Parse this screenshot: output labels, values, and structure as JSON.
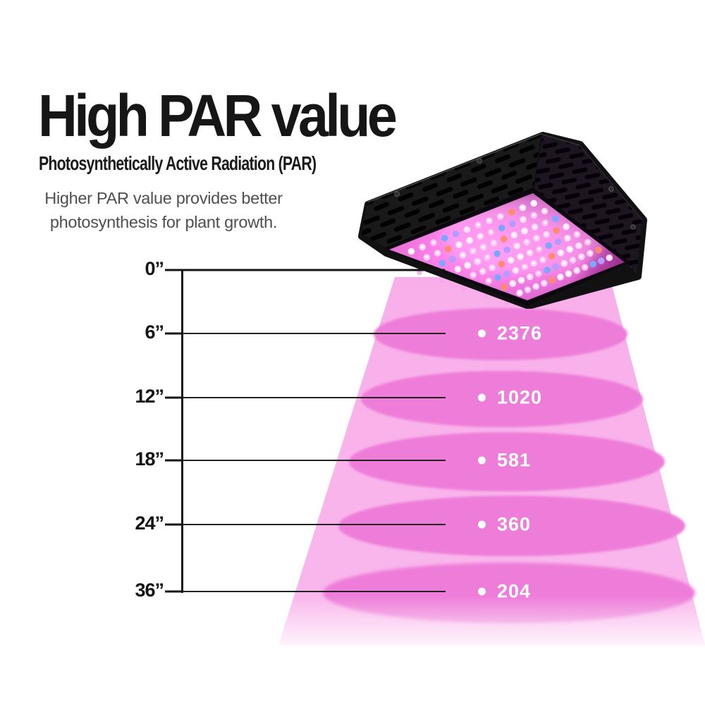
{
  "header": {
    "title": "High PAR value",
    "subtitle": "Photosynthetically Active Radiation (PAR)",
    "description_line1": "Higher PAR value provides better",
    "description_line2": "photosynthesis for plant growth."
  },
  "ruler": {
    "unit": "inches",
    "ticks": [
      "0”",
      "6”",
      "12”",
      "18”",
      "24”",
      "36”"
    ]
  },
  "par_rows": [
    {
      "distance": "6”",
      "value": "2376"
    },
    {
      "distance": "12”",
      "value": "1020"
    },
    {
      "distance": "18”",
      "value": "581"
    },
    {
      "distance": "24”",
      "value": "360"
    },
    {
      "distance": "36”",
      "value": "204"
    }
  ],
  "chart_data": {
    "type": "table",
    "title": "High PAR value",
    "xlabel": "distance below lamp (inches)",
    "ylabel": "PAR value",
    "categories": [
      "6”",
      "12”",
      "18”",
      "24”",
      "36”"
    ],
    "series": [
      {
        "name": "PAR value",
        "values": [
          2376,
          1020,
          581,
          360,
          204
        ]
      }
    ]
  },
  "lamp": {
    "alt": "Black LED grow light panel with glowing pink full-spectrum LEDs",
    "led_rows": 8,
    "led_cols": 12
  },
  "colors": {
    "cone_pink": "#f8afe9",
    "pool_pink": "#ee7dd9",
    "title_black": "#161616",
    "desc_gray": "#4f4f4f",
    "value_white": "#ffffff"
  }
}
